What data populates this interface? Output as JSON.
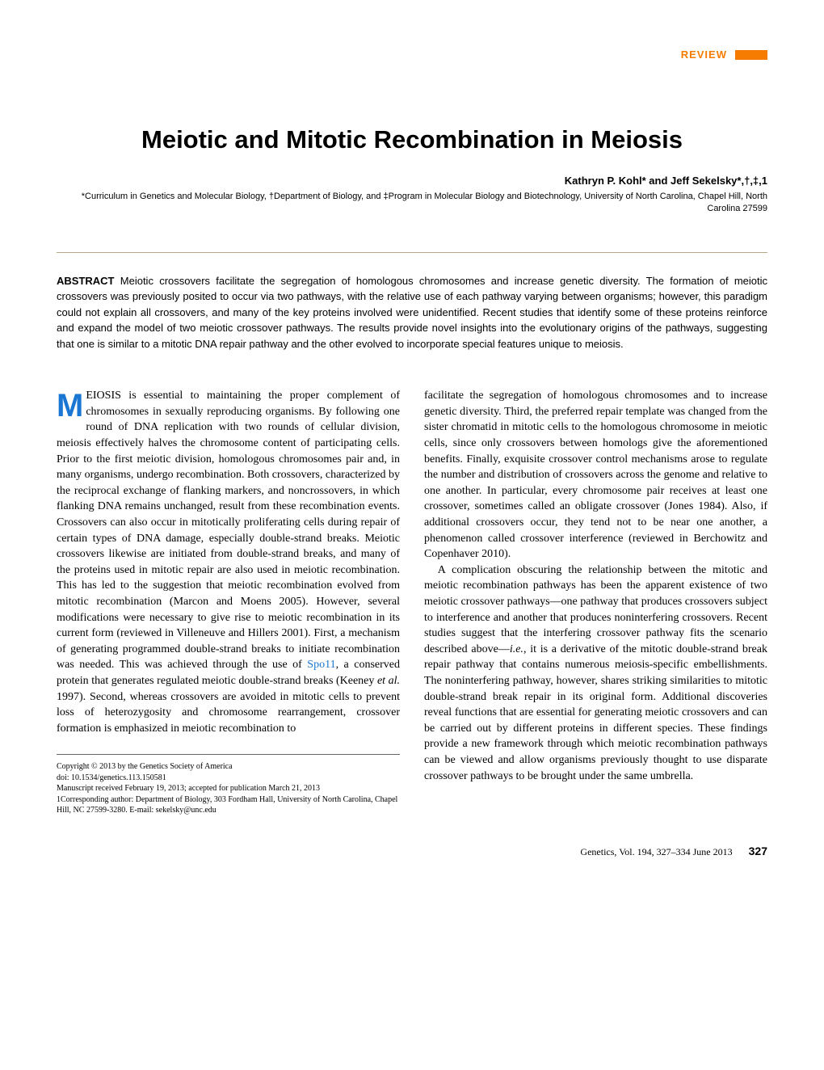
{
  "header": {
    "review_label": "REVIEW",
    "accent_color": "#f57c00"
  },
  "article": {
    "title": "Meiotic and Mitotic Recombination in Meiosis",
    "authors": "Kathryn P. Kohl* and Jeff Sekelsky*,†,‡,1",
    "affiliations": "*Curriculum in Genetics and Molecular Biology, †Department of Biology, and ‡Program in Molecular Biology and Biotechnology, University of North Carolina, Chapel Hill, North Carolina 27599"
  },
  "abstract": {
    "label": "ABSTRACT",
    "text": "Meiotic crossovers facilitate the segregation of homologous chromosomes and increase genetic diversity. The formation of meiotic crossovers was previously posited to occur via two pathways, with the relative use of each pathway varying between organisms; however, this paradigm could not explain all crossovers, and many of the key proteins involved were unidentified. Recent studies that identify some of these proteins reinforce and expand the model of two meiotic crossover pathways. The results provide novel insights into the evolutionary origins of the pathways, suggesting that one is similar to a mitotic DNA repair pathway and the other evolved to incorporate special features unique to meiosis."
  },
  "body": {
    "col1_p1_firstword": "EIOSIS is essential to maintaining the proper complement of chromosomes in sexually reproducing organisms. By following one round of DNA replication with two rounds of cellular division, meiosis effectively halves the chromosome content of participating cells. Prior to the first meiotic division, homologous chromosomes pair and, in many organisms, undergo recombination. Both crossovers, characterized by the reciprocal exchange of flanking markers, and noncrossovers, in which flanking DNA remains unchanged, result from these recombination events. Crossovers can also occur in mitotically proliferating cells during repair of certain types of DNA damage, especially double-strand breaks. Meiotic crossovers likewise are initiated from double-strand breaks, and many of the proteins used in mitotic repair are also used in meiotic recombination. This has led to the suggestion that meiotic recombination evolved from mitotic recombination (Marcon and Moens 2005). However, several modifications were necessary to give rise to meiotic recombination in its current form (reviewed in Villeneuve and Hillers 2001). First, a mechanism of generating programmed double-strand breaks to initiate recombination was needed. This was achieved through the use of ",
    "col1_gene": "Spo11",
    "col1_p1_rest": ", a conserved protein that generates regulated meiotic double-strand breaks (Keeney ",
    "col1_etal": "et al.",
    "col1_p1_end": " 1997). Second, whereas crossovers are avoided in mitotic cells to prevent loss of heterozygosity and chromosome rearrangement, crossover formation is emphasized in meiotic recombination to",
    "col2_p1": "facilitate the segregation of homologous chromosomes and to increase genetic diversity. Third, the preferred repair template was changed from the sister chromatid in mitotic cells to the homologous chromosome in meiotic cells, since only crossovers between homologs give the aforementioned benefits. Finally, exquisite crossover control mechanisms arose to regulate the number and distribution of crossovers across the genome and relative to one another. In particular, every chromosome pair receives at least one crossover, sometimes called an obligate crossover (Jones 1984). Also, if additional crossovers occur, they tend not to be near one another, a phenomenon called crossover interference (reviewed in Berchowitz and Copenhaver 2010).",
    "col2_p2_a": "A complication obscuring the relationship between the mitotic and meiotic recombination pathways has been the apparent existence of two meiotic crossover pathways—one pathway that produces crossovers subject to interference and another that produces noninterfering crossovers. Recent studies suggest that the interfering crossover pathway fits the scenario described above—",
    "col2_ie": "i.e.",
    "col2_p2_b": ", it is a derivative of the mitotic double-strand break repair pathway that contains numerous meiosis-specific embellishments. The noninterfering pathway, however, shares striking similarities to mitotic double-strand break repair in its original form. Additional discoveries reveal functions that are essential for generating meiotic crossovers and can be carried out by different proteins in different species. These findings provide a new framework through which meiotic recombination pathways can be viewed and allow organisms previously thought to use disparate crossover pathways to be brought under the same umbrella."
  },
  "footnotes": {
    "copyright": "Copyright © 2013 by the Genetics Society of America",
    "doi": "doi: 10.1534/genetics.113.150581",
    "manuscript": "Manuscript received February 19, 2013; accepted for publication March 21, 2013",
    "corresponding": "1Corresponding author: Department of Biology, 303 Fordham Hall, University of North Carolina, Chapel Hill, NC 27599-3280. E-mail: sekelsky@unc.edu"
  },
  "footer": {
    "journal": "Genetics, Vol. 194, 327–334   June 2013",
    "page": "327"
  },
  "colors": {
    "accent_orange": "#f57c00",
    "link_blue": "#1976d2",
    "divider": "#b8a88a",
    "text": "#000000",
    "background": "#ffffff"
  },
  "typography": {
    "title_fontsize": 31,
    "body_fontsize": 14,
    "abstract_fontsize": 13,
    "footnote_fontsize": 10,
    "dropcap_fontsize": 40
  }
}
